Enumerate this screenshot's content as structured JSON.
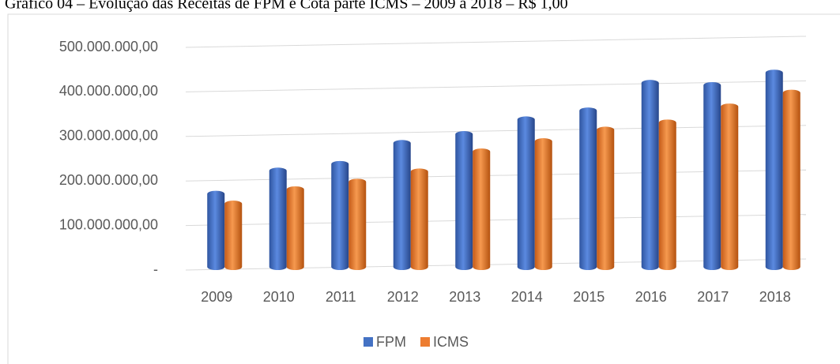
{
  "chart_data": {
    "type": "bar",
    "title": "Gráfico 04 – Evolução das Receitas de FPM e Cota parte ICMS – 2009 a 2018 – R$ 1,00",
    "categories": [
      "2009",
      "2010",
      "2011",
      "2012",
      "2013",
      "2014",
      "2015",
      "2016",
      "2017",
      "2018"
    ],
    "series": [
      {
        "name": "FPM",
        "color": "#4472c4",
        "values": [
          178000000,
          230000000,
          245000000,
          292000000,
          312000000,
          345000000,
          365000000,
          427000000,
          422000000,
          450000000
        ]
      },
      {
        "name": "ICMS",
        "color": "#ed7d31",
        "values": [
          156000000,
          188000000,
          205000000,
          228000000,
          273000000,
          296000000,
          322000000,
          338000000,
          374000000,
          405000000
        ]
      }
    ],
    "ylim": [
      0,
      500000000
    ],
    "yticks": [
      {
        "value": 0,
        "label": "-"
      },
      {
        "value": 100000000,
        "label": "100.000.000,00"
      },
      {
        "value": 200000000,
        "label": "200.000.000,00"
      },
      {
        "value": 300000000,
        "label": "300.000.000,00"
      },
      {
        "value": 400000000,
        "label": "400.000.000,00"
      },
      {
        "value": 500000000,
        "label": "500.000.000,00"
      }
    ],
    "grid": true,
    "legend": "bottom"
  }
}
